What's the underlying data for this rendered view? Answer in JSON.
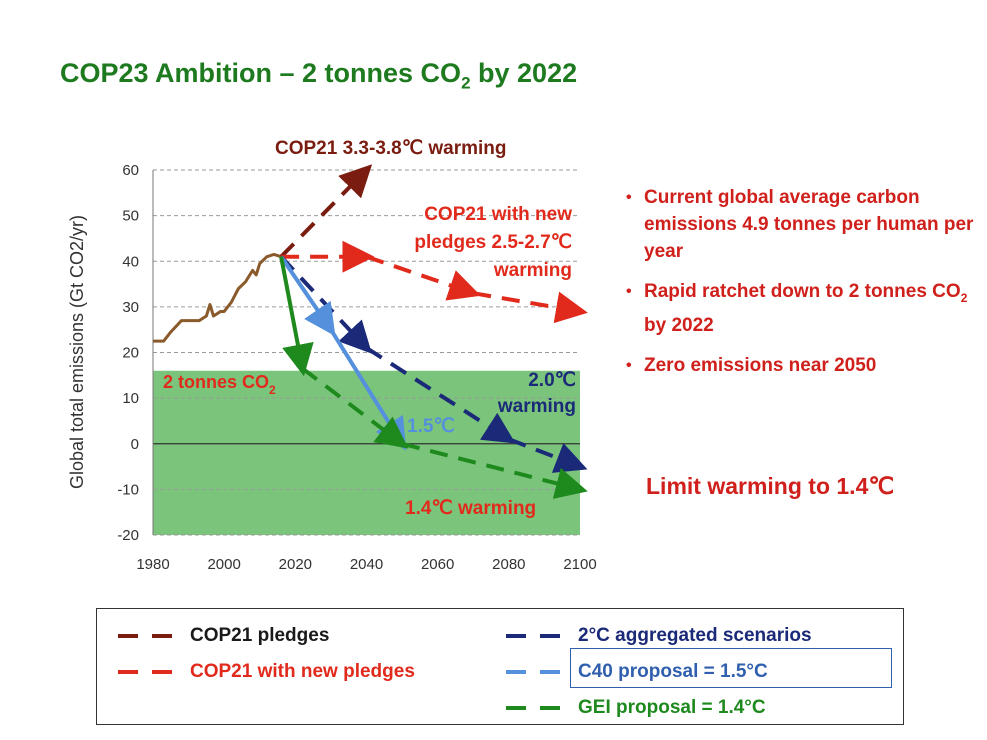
{
  "title": {
    "main": "COP23 Ambition – 2 tonnes CO",
    "sub": "2",
    "tail": " by 2022"
  },
  "bullets": [
    {
      "text": "Current global average carbon emissions 4.9 tonnes per human per year"
    },
    {
      "pre": "Rapid ratchet down to 2 tonnes CO",
      "sub": "2",
      "post": " by 2022"
    },
    {
      "text": "Zero emissions near 2050"
    }
  ],
  "limit_text": "Limit warming to 1.4℃",
  "colors": {
    "dark_red": "#7a1c10",
    "red": "#e12a1c",
    "navy": "#1b2a78",
    "light_blue": "#5590dd",
    "green": "#1e8a1e",
    "band": "#74c174",
    "history": "#8a5a2b"
  },
  "chart_data": {
    "type": "line",
    "ylabel": "Global total emissions (Gt CO2/yr)",
    "xlim": [
      1980,
      2100
    ],
    "ylim": [
      -20,
      60
    ],
    "xticks": [
      1980,
      2000,
      2020,
      2040,
      2060,
      2080,
      2100
    ],
    "yticks": [
      60,
      50,
      40,
      30,
      20,
      10,
      0,
      -10,
      -20
    ],
    "target_band": {
      "label_main": "2 tonnes CO",
      "label_sub": "2",
      "ymin": -20,
      "ymax": 16
    },
    "history": {
      "name": "Historical emissions",
      "x": [
        1980,
        1983,
        1985,
        1988,
        1990,
        1993,
        1995,
        1996,
        1997,
        1998,
        1999,
        2000,
        2002,
        2004,
        2006,
        2008,
        2009,
        2010,
        2012,
        2014,
        2016
      ],
      "y": [
        22.5,
        22.5,
        24.5,
        27,
        27,
        27,
        28,
        30.5,
        28,
        28.5,
        29,
        29,
        31,
        34,
        35.5,
        38,
        37,
        39.5,
        41,
        41.5,
        41
      ]
    },
    "series": [
      {
        "name": "COP21 pledges",
        "label": "COP21 3.3-3.8℃ warming",
        "style": "dashed",
        "color": "dark_red",
        "x": [
          2016,
          2040
        ],
        "y": [
          41,
          60
        ]
      },
      {
        "name": "COP21 with new pledges",
        "label_lines": [
          "COP21 with new",
          "pledges 2.5-2.7℃",
          "warming"
        ],
        "style": "dashed",
        "color": "red",
        "x": [
          2016,
          2040,
          2070,
          2100
        ],
        "y": [
          41,
          41,
          33,
          29
        ]
      },
      {
        "name": "2°C aggregated scenarios",
        "label_lines": [
          "2.0℃",
          "warming"
        ],
        "style": "dashed",
        "color": "navy",
        "x": [
          2016,
          2040,
          2080,
          2100
        ],
        "y": [
          41,
          21,
          1,
          -5
        ]
      },
      {
        "name": "C40 proposal = 1.5°C",
        "label": "1.5℃",
        "style": "solid",
        "color": "light_blue",
        "x": [
          2016,
          2030,
          2050
        ],
        "y": [
          41,
          25,
          0
        ]
      },
      {
        "name": "GEI proposal = 1.4°C",
        "label": "1.4℃ warming",
        "style": "solid-then-dashed",
        "color": "green",
        "x": [
          2016,
          2022,
          2050,
          2100
        ],
        "y": [
          41,
          16.5,
          0,
          -10
        ]
      }
    ]
  },
  "legend": [
    {
      "label": "COP21 pledges",
      "color": "dark_red"
    },
    {
      "label": "COP21 with new pledges",
      "color": "red"
    },
    {
      "label": "2°C aggregated scenarios",
      "color": "navy"
    },
    {
      "label": "C40 proposal = 1.5°C",
      "color": "light_blue"
    },
    {
      "label": "GEI proposal = 1.4°C",
      "color": "green"
    }
  ]
}
